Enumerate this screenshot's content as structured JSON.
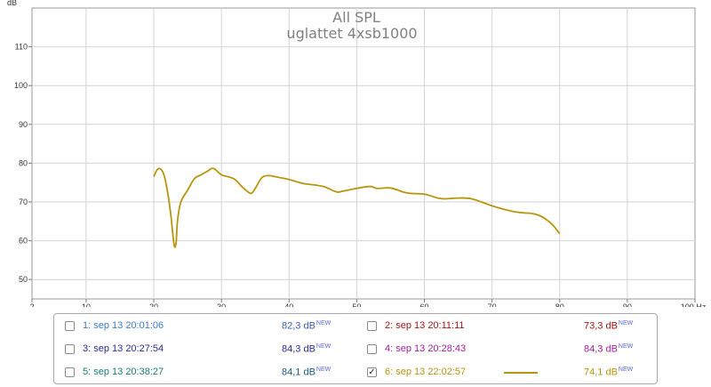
{
  "chart_data": {
    "type": "line",
    "title": "All SPL",
    "subtitle": "uglattet 4xsb1000",
    "ylabel": "dB",
    "xlabel": "",
    "x_unit_label": "100 Hz",
    "xlim": [
      2,
      100
    ],
    "ylim": [
      45,
      120
    ],
    "x_ticks": [
      2,
      10,
      20,
      30,
      40,
      50,
      60,
      70,
      80,
      90,
      100
    ],
    "x_tick_labels": [
      "2",
      "10",
      "20",
      "30",
      "40",
      "50",
      "60",
      "70",
      "80",
      "90",
      "100 Hz"
    ],
    "y_ticks": [
      50,
      60,
      70,
      80,
      90,
      100,
      110
    ],
    "grid": true,
    "series": [
      {
        "name": "6: sep 13 22:02:57",
        "color": "#b8960c",
        "x": [
          20.0,
          20.5,
          21.0,
          21.5,
          22.0,
          22.5,
          23.0,
          23.3,
          23.5,
          24.0,
          25.0,
          26.0,
          27.0,
          28.0,
          28.5,
          29.0,
          30.0,
          31.0,
          32.0,
          33.0,
          34.0,
          34.5,
          35.0,
          36.0,
          37.0,
          38.0,
          40.0,
          42.0,
          45.0,
          47.0,
          48.0,
          50.0,
          52.0,
          53.0,
          55.0,
          57.0,
          58.0,
          60.0,
          62.0,
          63.0,
          65.0,
          67.0,
          70.0,
          72.0,
          74.0,
          76.0,
          77.0,
          78.0,
          79.0,
          80.0
        ],
        "y": [
          76.5,
          78.3,
          78.5,
          77.0,
          73.0,
          67.0,
          59.0,
          59.5,
          65.0,
          70.0,
          73.0,
          76.0,
          77.0,
          78.0,
          78.6,
          78.5,
          77.0,
          76.5,
          75.8,
          74.0,
          72.5,
          72.3,
          73.5,
          76.3,
          76.8,
          76.5,
          75.8,
          74.8,
          74.0,
          72.6,
          72.8,
          73.5,
          74.0,
          73.5,
          73.6,
          72.5,
          72.2,
          72.0,
          71.0,
          70.8,
          71.0,
          70.8,
          69.0,
          68.0,
          67.3,
          67.0,
          66.5,
          65.5,
          64.0,
          61.8
        ]
      }
    ]
  },
  "legend": {
    "new_tag": "NEW",
    "items": [
      {
        "label": "1: sep 13 20:01:06",
        "value": "82,3 dB",
        "color": "#3a7bc8",
        "value_color": "#3a5fa8",
        "checked": false,
        "check_mark": ""
      },
      {
        "label": "2: sep 13 20:11:11",
        "value": "73,3 dB",
        "color": "#a01414",
        "value_color": "#a01414",
        "checked": false,
        "check_mark": ""
      },
      {
        "label": "3: sep 13 20:27:54",
        "value": "84,3 dB",
        "color": "#2b2c8c",
        "value_color": "#2b2c8c",
        "checked": false,
        "check_mark": ""
      },
      {
        "label": "4: sep 13 20:28:43",
        "value": "84,3 dB",
        "color": "#a0209c",
        "value_color": "#a0209c",
        "checked": false,
        "check_mark": ""
      },
      {
        "label": "5: sep 13 20:38:27",
        "value": "84,1 dB",
        "color": "#1a7a7a",
        "value_color": "#1a5a80",
        "checked": false,
        "check_mark": ""
      },
      {
        "label": "6: sep 13 22:02:57",
        "value": "74,1 dB",
        "color": "#b8960c",
        "value_color": "#b8960c",
        "checked": true,
        "check_mark": "✓"
      }
    ]
  }
}
